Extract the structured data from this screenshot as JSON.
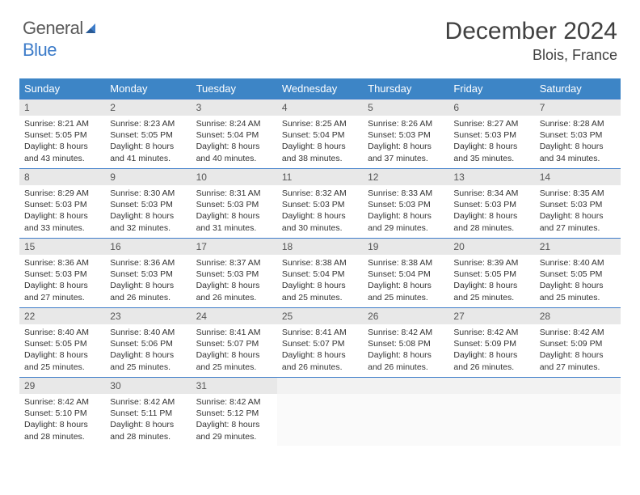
{
  "brand": {
    "part1": "General",
    "part2": "Blue"
  },
  "title": "December 2024",
  "location": "Blois, France",
  "colors": {
    "header_bg": "#3d85c6",
    "accent": "#3d7cc9",
    "daynum_bg": "#e8e8e8",
    "text": "#333333"
  },
  "weekdays": [
    "Sunday",
    "Monday",
    "Tuesday",
    "Wednesday",
    "Thursday",
    "Friday",
    "Saturday"
  ],
  "weeks": [
    [
      {
        "n": "1",
        "sr": "Sunrise: 8:21 AM",
        "ss": "Sunset: 5:05 PM",
        "d1": "Daylight: 8 hours",
        "d2": "and 43 minutes."
      },
      {
        "n": "2",
        "sr": "Sunrise: 8:23 AM",
        "ss": "Sunset: 5:05 PM",
        "d1": "Daylight: 8 hours",
        "d2": "and 41 minutes."
      },
      {
        "n": "3",
        "sr": "Sunrise: 8:24 AM",
        "ss": "Sunset: 5:04 PM",
        "d1": "Daylight: 8 hours",
        "d2": "and 40 minutes."
      },
      {
        "n": "4",
        "sr": "Sunrise: 8:25 AM",
        "ss": "Sunset: 5:04 PM",
        "d1": "Daylight: 8 hours",
        "d2": "and 38 minutes."
      },
      {
        "n": "5",
        "sr": "Sunrise: 8:26 AM",
        "ss": "Sunset: 5:03 PM",
        "d1": "Daylight: 8 hours",
        "d2": "and 37 minutes."
      },
      {
        "n": "6",
        "sr": "Sunrise: 8:27 AM",
        "ss": "Sunset: 5:03 PM",
        "d1": "Daylight: 8 hours",
        "d2": "and 35 minutes."
      },
      {
        "n": "7",
        "sr": "Sunrise: 8:28 AM",
        "ss": "Sunset: 5:03 PM",
        "d1": "Daylight: 8 hours",
        "d2": "and 34 minutes."
      }
    ],
    [
      {
        "n": "8",
        "sr": "Sunrise: 8:29 AM",
        "ss": "Sunset: 5:03 PM",
        "d1": "Daylight: 8 hours",
        "d2": "and 33 minutes."
      },
      {
        "n": "9",
        "sr": "Sunrise: 8:30 AM",
        "ss": "Sunset: 5:03 PM",
        "d1": "Daylight: 8 hours",
        "d2": "and 32 minutes."
      },
      {
        "n": "10",
        "sr": "Sunrise: 8:31 AM",
        "ss": "Sunset: 5:03 PM",
        "d1": "Daylight: 8 hours",
        "d2": "and 31 minutes."
      },
      {
        "n": "11",
        "sr": "Sunrise: 8:32 AM",
        "ss": "Sunset: 5:03 PM",
        "d1": "Daylight: 8 hours",
        "d2": "and 30 minutes."
      },
      {
        "n": "12",
        "sr": "Sunrise: 8:33 AM",
        "ss": "Sunset: 5:03 PM",
        "d1": "Daylight: 8 hours",
        "d2": "and 29 minutes."
      },
      {
        "n": "13",
        "sr": "Sunrise: 8:34 AM",
        "ss": "Sunset: 5:03 PM",
        "d1": "Daylight: 8 hours",
        "d2": "and 28 minutes."
      },
      {
        "n": "14",
        "sr": "Sunrise: 8:35 AM",
        "ss": "Sunset: 5:03 PM",
        "d1": "Daylight: 8 hours",
        "d2": "and 27 minutes."
      }
    ],
    [
      {
        "n": "15",
        "sr": "Sunrise: 8:36 AM",
        "ss": "Sunset: 5:03 PM",
        "d1": "Daylight: 8 hours",
        "d2": "and 27 minutes."
      },
      {
        "n": "16",
        "sr": "Sunrise: 8:36 AM",
        "ss": "Sunset: 5:03 PM",
        "d1": "Daylight: 8 hours",
        "d2": "and 26 minutes."
      },
      {
        "n": "17",
        "sr": "Sunrise: 8:37 AM",
        "ss": "Sunset: 5:03 PM",
        "d1": "Daylight: 8 hours",
        "d2": "and 26 minutes."
      },
      {
        "n": "18",
        "sr": "Sunrise: 8:38 AM",
        "ss": "Sunset: 5:04 PM",
        "d1": "Daylight: 8 hours",
        "d2": "and 25 minutes."
      },
      {
        "n": "19",
        "sr": "Sunrise: 8:38 AM",
        "ss": "Sunset: 5:04 PM",
        "d1": "Daylight: 8 hours",
        "d2": "and 25 minutes."
      },
      {
        "n": "20",
        "sr": "Sunrise: 8:39 AM",
        "ss": "Sunset: 5:05 PM",
        "d1": "Daylight: 8 hours",
        "d2": "and 25 minutes."
      },
      {
        "n": "21",
        "sr": "Sunrise: 8:40 AM",
        "ss": "Sunset: 5:05 PM",
        "d1": "Daylight: 8 hours",
        "d2": "and 25 minutes."
      }
    ],
    [
      {
        "n": "22",
        "sr": "Sunrise: 8:40 AM",
        "ss": "Sunset: 5:05 PM",
        "d1": "Daylight: 8 hours",
        "d2": "and 25 minutes."
      },
      {
        "n": "23",
        "sr": "Sunrise: 8:40 AM",
        "ss": "Sunset: 5:06 PM",
        "d1": "Daylight: 8 hours",
        "d2": "and 25 minutes."
      },
      {
        "n": "24",
        "sr": "Sunrise: 8:41 AM",
        "ss": "Sunset: 5:07 PM",
        "d1": "Daylight: 8 hours",
        "d2": "and 25 minutes."
      },
      {
        "n": "25",
        "sr": "Sunrise: 8:41 AM",
        "ss": "Sunset: 5:07 PM",
        "d1": "Daylight: 8 hours",
        "d2": "and 26 minutes."
      },
      {
        "n": "26",
        "sr": "Sunrise: 8:42 AM",
        "ss": "Sunset: 5:08 PM",
        "d1": "Daylight: 8 hours",
        "d2": "and 26 minutes."
      },
      {
        "n": "27",
        "sr": "Sunrise: 8:42 AM",
        "ss": "Sunset: 5:09 PM",
        "d1": "Daylight: 8 hours",
        "d2": "and 26 minutes."
      },
      {
        "n": "28",
        "sr": "Sunrise: 8:42 AM",
        "ss": "Sunset: 5:09 PM",
        "d1": "Daylight: 8 hours",
        "d2": "and 27 minutes."
      }
    ],
    [
      {
        "n": "29",
        "sr": "Sunrise: 8:42 AM",
        "ss": "Sunset: 5:10 PM",
        "d1": "Daylight: 8 hours",
        "d2": "and 28 minutes."
      },
      {
        "n": "30",
        "sr": "Sunrise: 8:42 AM",
        "ss": "Sunset: 5:11 PM",
        "d1": "Daylight: 8 hours",
        "d2": "and 28 minutes."
      },
      {
        "n": "31",
        "sr": "Sunrise: 8:42 AM",
        "ss": "Sunset: 5:12 PM",
        "d1": "Daylight: 8 hours",
        "d2": "and 29 minutes."
      },
      {
        "empty": true
      },
      {
        "empty": true
      },
      {
        "empty": true
      },
      {
        "empty": true
      }
    ]
  ]
}
